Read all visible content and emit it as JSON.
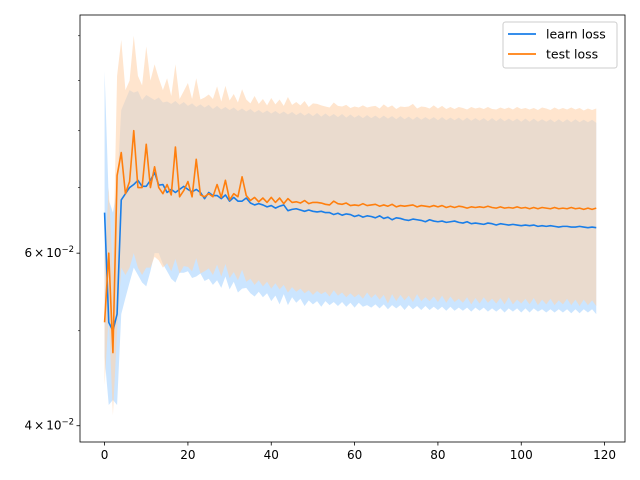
{
  "chart_data": {
    "type": "line",
    "title": "",
    "xlabel": "",
    "ylabel": "",
    "y_scale": "log",
    "xlim": [
      -5.9,
      124.9
    ],
    "ylim": [
      0.0385,
      0.105
    ],
    "grid": false,
    "legend_position": "top-right",
    "x_ticks": [
      {
        "value": 0,
        "label": "0"
      },
      {
        "value": 20,
        "label": "20"
      },
      {
        "value": 40,
        "label": "40"
      },
      {
        "value": 60,
        "label": "60"
      },
      {
        "value": 80,
        "label": "80"
      },
      {
        "value": 100,
        "label": "100"
      },
      {
        "value": 120,
        "label": "120"
      }
    ],
    "y_major_ticks": [
      {
        "value": 0.04,
        "label_base": "4",
        "label_mult": "×",
        "label_pow_base": "10",
        "label_exp": "−2"
      },
      {
        "value": 0.06,
        "label_base": "6",
        "label_mult": "×",
        "label_pow_base": "10",
        "label_exp": "−2"
      }
    ],
    "y_minor_ticks": [
      0.05,
      0.07,
      0.08,
      0.09,
      0.1
    ],
    "series": [
      {
        "name": "learn loss",
        "color": "#1a7ee8",
        "band_color": "#a9d4ff",
        "x": [
          0,
          1,
          2,
          3,
          4,
          5,
          6,
          7,
          8,
          9,
          10,
          11,
          12,
          13,
          14,
          15,
          16,
          17,
          18,
          19,
          20,
          21,
          22,
          23,
          24,
          25,
          26,
          27,
          28,
          29,
          30,
          31,
          32,
          33,
          34,
          35,
          36,
          37,
          38,
          39,
          40,
          41,
          42,
          43,
          44,
          45,
          46,
          47,
          48,
          49,
          50,
          51,
          52,
          53,
          54,
          55,
          56,
          57,
          58,
          59,
          60,
          61,
          62,
          63,
          64,
          65,
          66,
          67,
          68,
          69,
          70,
          71,
          72,
          73,
          74,
          75,
          76,
          77,
          78,
          79,
          80,
          81,
          82,
          83,
          84,
          85,
          86,
          87,
          88,
          89,
          90,
          91,
          92,
          93,
          94,
          95,
          96,
          97,
          98,
          99,
          100,
          101,
          102,
          103,
          104,
          105,
          106,
          107,
          108,
          109,
          110,
          111,
          112,
          113,
          114,
          115,
          116,
          117,
          118
        ],
        "mean": [
          0.066,
          0.051,
          0.05,
          0.052,
          0.068,
          0.069,
          0.07,
          0.0705,
          0.0712,
          0.0702,
          0.0702,
          0.0712,
          0.0725,
          0.0704,
          0.0705,
          0.0692,
          0.0697,
          0.0692,
          0.0697,
          0.0702,
          0.0697,
          0.0693,
          0.0697,
          0.0692,
          0.0682,
          0.0692,
          0.0687,
          0.0687,
          0.0682,
          0.0688,
          0.0678,
          0.0684,
          0.0678,
          0.0678,
          0.0683,
          0.0675,
          0.0672,
          0.0674,
          0.0672,
          0.0669,
          0.0671,
          0.0667,
          0.067,
          0.0672,
          0.0663,
          0.0665,
          0.0666,
          0.0664,
          0.0662,
          0.0664,
          0.0662,
          0.0661,
          0.0662,
          0.066,
          0.066,
          0.0657,
          0.0659,
          0.0656,
          0.0658,
          0.0657,
          0.0654,
          0.0656,
          0.0653,
          0.0655,
          0.0654,
          0.0652,
          0.0655,
          0.0651,
          0.0653,
          0.0649,
          0.0652,
          0.0651,
          0.0649,
          0.0648,
          0.065,
          0.0649,
          0.0648,
          0.0646,
          0.0649,
          0.0647,
          0.0646,
          0.0647,
          0.0645,
          0.0646,
          0.0647,
          0.0645,
          0.0644,
          0.0646,
          0.0643,
          0.0644,
          0.0643,
          0.0642,
          0.0644,
          0.0643,
          0.0641,
          0.0643,
          0.0642,
          0.0641,
          0.0642,
          0.0641,
          0.064,
          0.0641,
          0.064,
          0.0641,
          0.0639,
          0.064,
          0.0639,
          0.064,
          0.0639,
          0.0638,
          0.0639,
          0.0639,
          0.0638,
          0.0638,
          0.0639,
          0.0638,
          0.0637,
          0.0638,
          0.0637
        ],
        "lower": [
          0.047,
          0.042,
          0.0425,
          0.042,
          0.052,
          0.054,
          0.056,
          0.058,
          0.057,
          0.056,
          0.0555,
          0.0575,
          0.06,
          0.06,
          0.0585,
          0.0575,
          0.0565,
          0.056,
          0.0573,
          0.0573,
          0.0575,
          0.0566,
          0.0568,
          0.0572,
          0.0562,
          0.0565,
          0.0557,
          0.0563,
          0.0553,
          0.0568,
          0.0551,
          0.0561,
          0.0547,
          0.0552,
          0.0553,
          0.0546,
          0.0542,
          0.0548,
          0.0541,
          0.0546,
          0.0536,
          0.0543,
          0.0532,
          0.0545,
          0.0531,
          0.0541,
          0.0534,
          0.0539,
          0.053,
          0.0537,
          0.0532,
          0.0536,
          0.0529,
          0.0536,
          0.0531,
          0.0535,
          0.053,
          0.0535,
          0.0529,
          0.0534,
          0.0528,
          0.0534,
          0.0529,
          0.0531,
          0.0528,
          0.0532,
          0.0527,
          0.0532,
          0.0526,
          0.0531,
          0.0527,
          0.0531,
          0.0525,
          0.0531,
          0.0526,
          0.053,
          0.0525,
          0.053,
          0.0525,
          0.0529,
          0.0525,
          0.0529,
          0.0524,
          0.0529,
          0.0524,
          0.0528,
          0.0524,
          0.0528,
          0.0523,
          0.0528,
          0.0524,
          0.0528,
          0.0523,
          0.0527,
          0.0523,
          0.0527,
          0.0522,
          0.0527,
          0.0523,
          0.0527,
          0.0522,
          0.0527,
          0.0522,
          0.0527,
          0.0523,
          0.0526,
          0.0522,
          0.0526,
          0.0522,
          0.0526,
          0.0522,
          0.0526,
          0.0521,
          0.0526,
          0.0521,
          0.0526,
          0.0522,
          0.0526,
          0.052
        ],
        "upper": [
          0.092,
          0.068,
          0.066,
          0.07,
          0.084,
          0.086,
          0.088,
          0.0875,
          0.0878,
          0.086,
          0.087,
          0.0865,
          0.086,
          0.0865,
          0.0855,
          0.0857,
          0.0852,
          0.0858,
          0.085,
          0.0856,
          0.0848,
          0.0853,
          0.0846,
          0.0851,
          0.0845,
          0.085,
          0.0842,
          0.0848,
          0.0841,
          0.0846,
          0.084,
          0.0845,
          0.0838,
          0.0843,
          0.0837,
          0.0842,
          0.0835,
          0.084,
          0.0834,
          0.0839,
          0.0833,
          0.0838,
          0.0832,
          0.0837,
          0.0831,
          0.0836,
          0.083,
          0.0835,
          0.0829,
          0.0834,
          0.0828,
          0.0834,
          0.0827,
          0.0833,
          0.0827,
          0.0832,
          0.0826,
          0.0832,
          0.0825,
          0.0831,
          0.0825,
          0.083,
          0.0824,
          0.083,
          0.0824,
          0.0829,
          0.0823,
          0.0829,
          0.0823,
          0.0828,
          0.0822,
          0.0828,
          0.0822,
          0.0827,
          0.0821,
          0.0827,
          0.0821,
          0.0826,
          0.0821,
          0.0826,
          0.082,
          0.0826,
          0.082,
          0.0825,
          0.082,
          0.0825,
          0.0819,
          0.0825,
          0.0819,
          0.0824,
          0.0819,
          0.0824,
          0.0818,
          0.0824,
          0.0818,
          0.0824,
          0.0818,
          0.0823,
          0.0818,
          0.0823,
          0.0817,
          0.0823,
          0.0817,
          0.0823,
          0.0817,
          0.0822,
          0.0817,
          0.0822,
          0.0816,
          0.0822,
          0.0816,
          0.0822,
          0.0816,
          0.0822,
          0.0816,
          0.0821,
          0.0816,
          0.0821,
          0.0815
        ]
      },
      {
        "name": "test loss",
        "color": "#ff7f0e",
        "band_color": "#ffd3ad",
        "x": [
          0,
          1,
          2,
          3,
          4,
          5,
          6,
          7,
          8,
          9,
          10,
          11,
          12,
          13,
          14,
          15,
          16,
          17,
          18,
          19,
          20,
          21,
          22,
          23,
          24,
          25,
          26,
          27,
          28,
          29,
          30,
          31,
          32,
          33,
          34,
          35,
          36,
          37,
          38,
          39,
          40,
          41,
          42,
          43,
          44,
          45,
          46,
          47,
          48,
          49,
          50,
          51,
          52,
          53,
          54,
          55,
          56,
          57,
          58,
          59,
          60,
          61,
          62,
          63,
          64,
          65,
          66,
          67,
          68,
          69,
          70,
          71,
          72,
          73,
          74,
          75,
          76,
          77,
          78,
          79,
          80,
          81,
          82,
          83,
          84,
          85,
          86,
          87,
          88,
          89,
          90,
          91,
          92,
          93,
          94,
          95,
          96,
          97,
          98,
          99,
          100,
          101,
          102,
          103,
          104,
          105,
          106,
          107,
          108,
          109,
          110,
          111,
          112,
          113,
          114,
          115,
          116,
          117,
          118
        ],
        "mean": [
          0.051,
          0.06,
          0.0475,
          0.072,
          0.076,
          0.069,
          0.071,
          0.08,
          0.07,
          0.07,
          0.0775,
          0.07,
          0.0735,
          0.07,
          0.069,
          0.0705,
          0.0688,
          0.077,
          0.0685,
          0.0695,
          0.071,
          0.0685,
          0.0748,
          0.0688,
          0.0685,
          0.069,
          0.0685,
          0.0705,
          0.0684,
          0.0712,
          0.068,
          0.069,
          0.0685,
          0.0718,
          0.0687,
          0.0679,
          0.0684,
          0.0677,
          0.0683,
          0.0676,
          0.0684,
          0.0676,
          0.0683,
          0.0674,
          0.0682,
          0.0676,
          0.0677,
          0.0675,
          0.0679,
          0.0674,
          0.0676,
          0.0676,
          0.0675,
          0.0673,
          0.0672,
          0.0678,
          0.0674,
          0.0673,
          0.0675,
          0.0671,
          0.0672,
          0.0671,
          0.0674,
          0.0671,
          0.0672,
          0.0673,
          0.067,
          0.0672,
          0.067,
          0.0673,
          0.0669,
          0.0671,
          0.067,
          0.0671,
          0.0672,
          0.0669,
          0.0671,
          0.067,
          0.0669,
          0.0671,
          0.0669,
          0.0671,
          0.0668,
          0.067,
          0.0668,
          0.067,
          0.0669,
          0.0667,
          0.0669,
          0.0668,
          0.0669,
          0.0668,
          0.067,
          0.0668,
          0.0667,
          0.0669,
          0.0667,
          0.0668,
          0.0667,
          0.0669,
          0.0667,
          0.0668,
          0.0666,
          0.0668,
          0.0666,
          0.0668,
          0.0667,
          0.0666,
          0.0668,
          0.0666,
          0.0667,
          0.0666,
          0.0668,
          0.0666,
          0.0667,
          0.0665,
          0.0667,
          0.0665,
          0.0667
        ],
        "lower": [
          0.044,
          0.052,
          0.041,
          0.05,
          0.058,
          0.057,
          0.058,
          0.06,
          0.058,
          0.057,
          0.058,
          0.058,
          0.0595,
          0.059,
          0.058,
          0.0586,
          0.0575,
          0.0592,
          0.0572,
          0.0582,
          0.0581,
          0.0575,
          0.0593,
          0.0572,
          0.0575,
          0.0579,
          0.057,
          0.0584,
          0.0568,
          0.0585,
          0.0566,
          0.0574,
          0.0563,
          0.0577,
          0.0561,
          0.0565,
          0.0557,
          0.0563,
          0.0555,
          0.0561,
          0.0552,
          0.0559,
          0.0551,
          0.0557,
          0.0547,
          0.0554,
          0.0548,
          0.0552,
          0.0546,
          0.055,
          0.0544,
          0.0549,
          0.0545,
          0.0548,
          0.0542,
          0.055,
          0.0543,
          0.0547,
          0.0541,
          0.0546,
          0.0541,
          0.0545,
          0.0539,
          0.0547,
          0.054,
          0.0545,
          0.0538,
          0.0544,
          0.0533,
          0.0545,
          0.0536,
          0.0544,
          0.0537,
          0.0543,
          0.0535,
          0.0545,
          0.0536,
          0.0541,
          0.0536,
          0.0542,
          0.0535,
          0.0543,
          0.0534,
          0.0542,
          0.0535,
          0.0539,
          0.0534,
          0.0541,
          0.0532,
          0.054,
          0.0533,
          0.0541,
          0.0534,
          0.0539,
          0.0533,
          0.054,
          0.0532,
          0.0541,
          0.0532,
          0.0538,
          0.0533,
          0.0539,
          0.0532,
          0.054,
          0.0531,
          0.0538,
          0.0532,
          0.0539,
          0.0531,
          0.0537,
          0.0532,
          0.0539,
          0.0531,
          0.0538,
          0.053,
          0.0538,
          0.0531,
          0.0537,
          0.053
        ],
        "upper": [
          0.059,
          0.07,
          0.057,
          0.091,
          0.099,
          0.088,
          0.09,
          0.1,
          0.091,
          0.089,
          0.0975,
          0.09,
          0.0935,
          0.0905,
          0.088,
          0.0905,
          0.0868,
          0.0935,
          0.0862,
          0.0878,
          0.0895,
          0.0862,
          0.0905,
          0.0861,
          0.0865,
          0.0871,
          0.0862,
          0.0888,
          0.0857,
          0.0889,
          0.0859,
          0.0872,
          0.0855,
          0.0882,
          0.0861,
          0.0853,
          0.0868,
          0.0852,
          0.0862,
          0.0849,
          0.0864,
          0.0851,
          0.0861,
          0.0848,
          0.0866,
          0.085,
          0.0856,
          0.0849,
          0.0858,
          0.0846,
          0.0853,
          0.0852,
          0.0849,
          0.0847,
          0.0845,
          0.0855,
          0.0848,
          0.0847,
          0.085,
          0.0844,
          0.0847,
          0.0845,
          0.0849,
          0.0845,
          0.0847,
          0.0848,
          0.0843,
          0.0851,
          0.0845,
          0.0849,
          0.0842,
          0.0847,
          0.0846,
          0.0847,
          0.0852,
          0.0843,
          0.0847,
          0.0846,
          0.0843,
          0.0849,
          0.0843,
          0.0848,
          0.0842,
          0.0846,
          0.0842,
          0.0846,
          0.0844,
          0.0841,
          0.0846,
          0.0843,
          0.0845,
          0.0842,
          0.0846,
          0.0842,
          0.0841,
          0.0845,
          0.0842,
          0.0845,
          0.0841,
          0.0846,
          0.0842,
          0.0844,
          0.0841,
          0.0844,
          0.084,
          0.0845,
          0.0843,
          0.084,
          0.0845,
          0.0841,
          0.0844,
          0.0841,
          0.0845,
          0.0841,
          0.0844,
          0.0839,
          0.0843,
          0.084,
          0.0843
        ]
      }
    ]
  }
}
